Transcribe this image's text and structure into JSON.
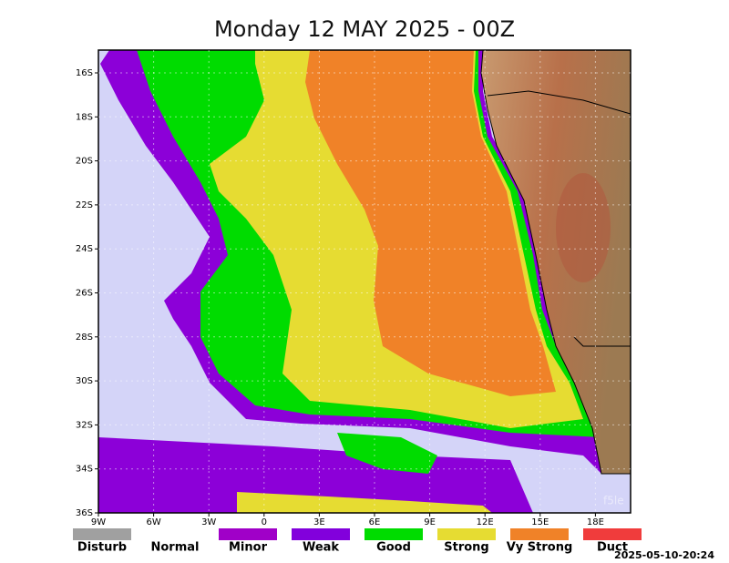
{
  "title": "Monday 12 MAY 2025 - 00Z",
  "lat_labels": [
    "16S",
    "18S",
    "20S",
    "22S",
    "24S",
    "26S",
    "28S",
    "30S",
    "32S",
    "34S",
    "36S"
  ],
  "lon_labels": [
    "9W",
    "6W",
    "3W",
    "0",
    "3E",
    "6E",
    "9E",
    "12E",
    "15E",
    "18E"
  ],
  "legend": [
    {
      "label": "Disturb",
      "color": "#a0a0a0"
    },
    {
      "label": "Normal",
      "color": "#ffffff"
    },
    {
      "label": "Minor",
      "color": "#a000c8"
    },
    {
      "label": "Weak",
      "color": "#8200dc"
    },
    {
      "label": "Good",
      "color": "#00dc00"
    },
    {
      "label": "Strong",
      "color": "#e6dc32"
    },
    {
      "label": "Vy Strong",
      "color": "#f08228"
    },
    {
      "label": "Duct",
      "color": "#f03c3c"
    }
  ],
  "timestamp": "2025-05-10-20:24",
  "watermark": "f5le"
}
